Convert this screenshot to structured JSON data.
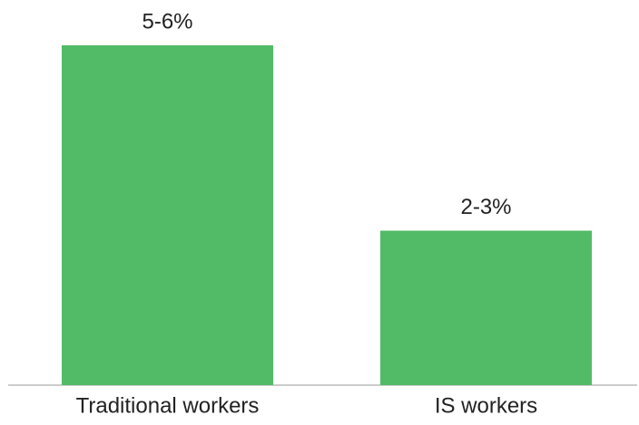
{
  "chart_data": {
    "type": "bar",
    "categories": [
      "Traditional workers",
      "IS workers"
    ],
    "values": [
      5.5,
      2.5
    ],
    "value_labels": [
      "5-6%",
      "2-3%"
    ],
    "color": "#52bb68"
  }
}
